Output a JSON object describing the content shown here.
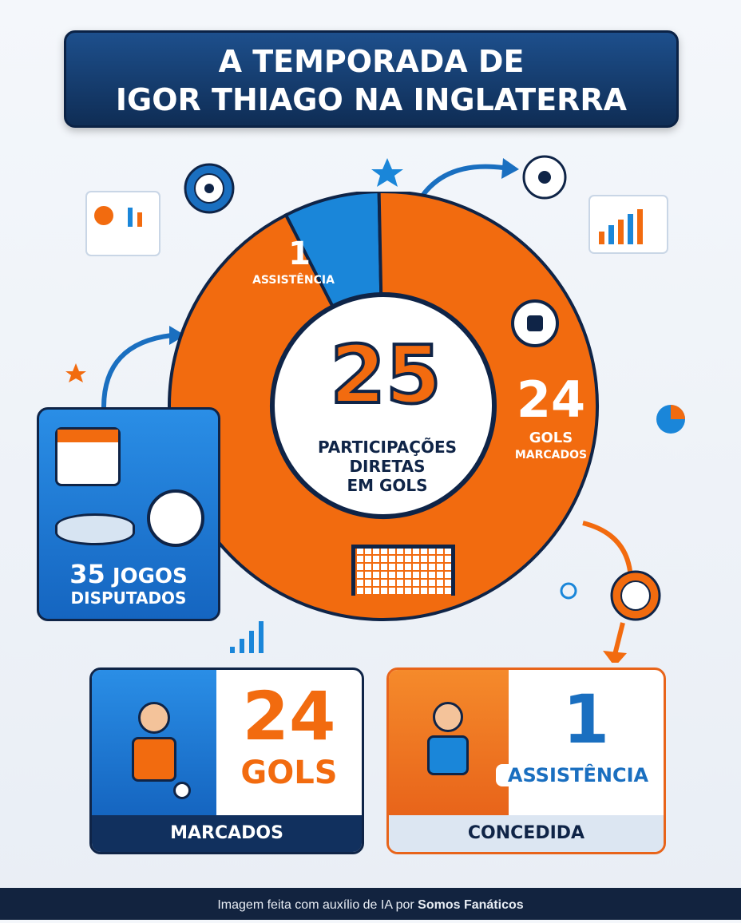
{
  "title": {
    "line1": "A TEMPORADA DE",
    "line2": "IGOR THIAGO NA INGLATERRA"
  },
  "donut": {
    "center_value": "25",
    "center_line1": "PARTICIPAÇÕES",
    "center_line2": "DIRETAS",
    "center_line3": "EM GOLS",
    "assist_value": "1",
    "assist_label": "ASSISTÊNCIA",
    "goals_value": "24",
    "goals_line1": "GOLS",
    "goals_line2": "MARCADOS",
    "goals": 24,
    "assists": 1,
    "colors": {
      "goals": "#f26b0f",
      "assists": "#1a86d9"
    }
  },
  "games": {
    "value": "35",
    "label1": "JOGOS",
    "label2": "DISPUTADOS"
  },
  "goals_card": {
    "value": "24",
    "unit": "GOLS",
    "caption": "MARCADOS"
  },
  "assist_card": {
    "value": "1",
    "unit": "ASSISTÊNCIA",
    "caption": "CONCEDIDA"
  },
  "footer": {
    "text": "Imagem feita com auxílio de IA por ",
    "brand": "Somos Fanáticos"
  }
}
